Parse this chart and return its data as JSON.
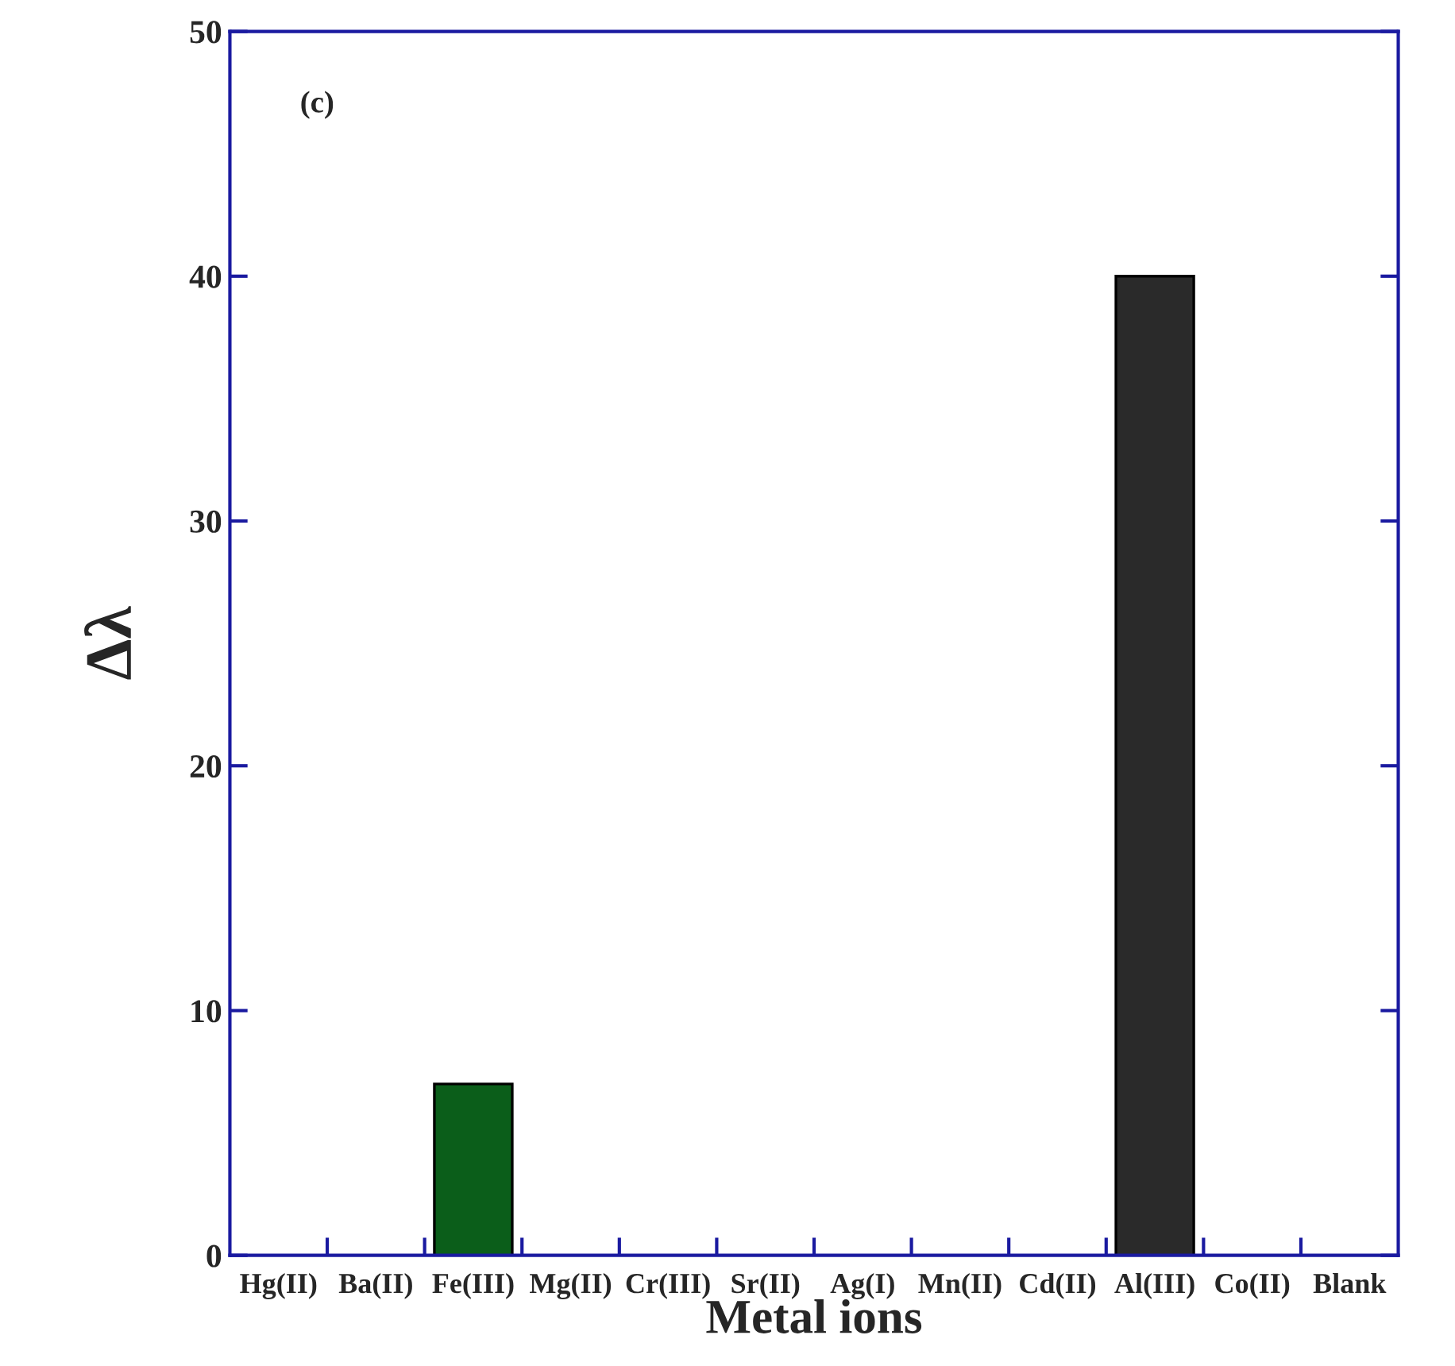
{
  "chart_data": {
    "type": "bar",
    "categories": [
      "Hg(II)",
      "Ba(II)",
      "Fe(III)",
      "Mg(II)",
      "Cr(III)",
      "Sr(II)",
      "Ag(I)",
      "Mn(II)",
      "Cd(II)",
      "Al(III)",
      "Co(II)",
      "Blank"
    ],
    "values": [
      0,
      0,
      7,
      0,
      0,
      0,
      0,
      0,
      0,
      40,
      0,
      0
    ],
    "colors": [
      null,
      null,
      "#0b5e1a",
      null,
      null,
      null,
      null,
      null,
      null,
      "#2a2a2a",
      null,
      null
    ],
    "xlabel": "Metal ions",
    "ylabel": "Δλ",
    "ylim": [
      0,
      50
    ],
    "yticks": [
      0,
      10,
      20,
      30,
      40,
      50
    ],
    "annotations": [
      "(c)"
    ],
    "grid": false,
    "legend": false
  }
}
